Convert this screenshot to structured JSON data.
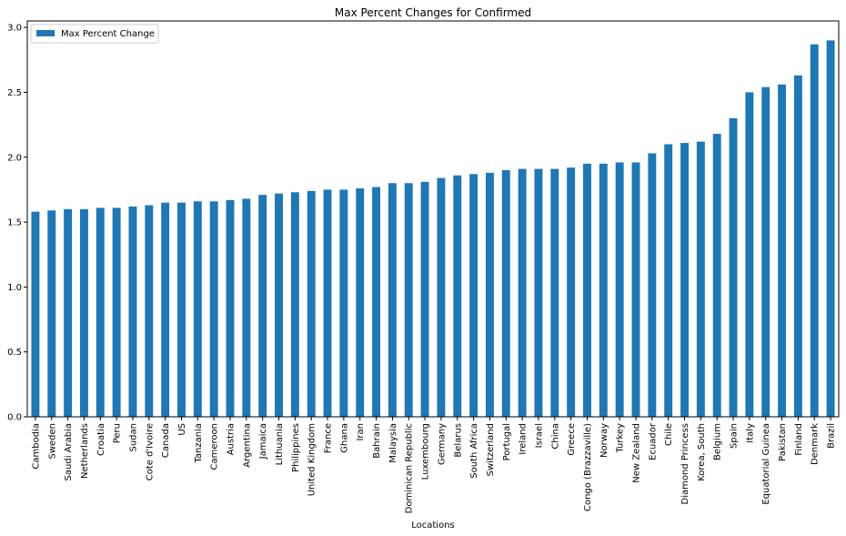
{
  "chart_data": {
    "type": "bar",
    "title": "Max Percent Changes for Confirmed",
    "xlabel": "Locations",
    "ylabel": "",
    "ylim": [
      0,
      3.05
    ],
    "yticks": [
      "0.0",
      "0.5",
      "1.0",
      "1.5",
      "2.0",
      "2.5",
      "3.0"
    ],
    "ytick_values": [
      0,
      0.5,
      1.0,
      1.5,
      2.0,
      2.5,
      3.0
    ],
    "grid": false,
    "legend_position": "top-left",
    "series": [
      {
        "name": "Max Percent Change",
        "color": "#1f77b4",
        "values": [
          1.58,
          1.59,
          1.6,
          1.6,
          1.61,
          1.61,
          1.62,
          1.63,
          1.65,
          1.65,
          1.66,
          1.66,
          1.67,
          1.68,
          1.71,
          1.72,
          1.73,
          1.74,
          1.75,
          1.75,
          1.76,
          1.77,
          1.8,
          1.8,
          1.81,
          1.84,
          1.86,
          1.87,
          1.88,
          1.9,
          1.91,
          1.91,
          1.91,
          1.92,
          1.95,
          1.95,
          1.96,
          1.96,
          2.03,
          2.1,
          2.11,
          2.12,
          2.18,
          2.3,
          2.5,
          2.54,
          2.56,
          2.63,
          2.87,
          2.9
        ]
      }
    ],
    "categories": [
      "Cambodia",
      "Sweden",
      "Saudi Arabia",
      "Netherlands",
      "Croatia",
      "Peru",
      "Sudan",
      "Cote d'Ivoire",
      "Canada",
      "US",
      "Tanzania",
      "Cameroon",
      "Austria",
      "Argentina",
      "Jamaica",
      "Lithuania",
      "Philippines",
      "United Kingdom",
      "France",
      "Ghana",
      "Iran",
      "Bahrain",
      "Malaysia",
      "Dominican Republic",
      "Luxembourg",
      "Germany",
      "Belarus",
      "South Africa",
      "Switzerland",
      "Portugal",
      "Ireland",
      "Israel",
      "China",
      "Greece",
      "Congo (Brazzaville)",
      "Norway",
      "Turkey",
      "New Zealand",
      "Ecuador",
      "Chile",
      "Diamond Princess",
      "Korea, South",
      "Belgium",
      "Spain",
      "Italy",
      "Equatorial Guinea",
      "Pakistan",
      "Finland",
      "Denmark",
      "Brazil"
    ]
  }
}
